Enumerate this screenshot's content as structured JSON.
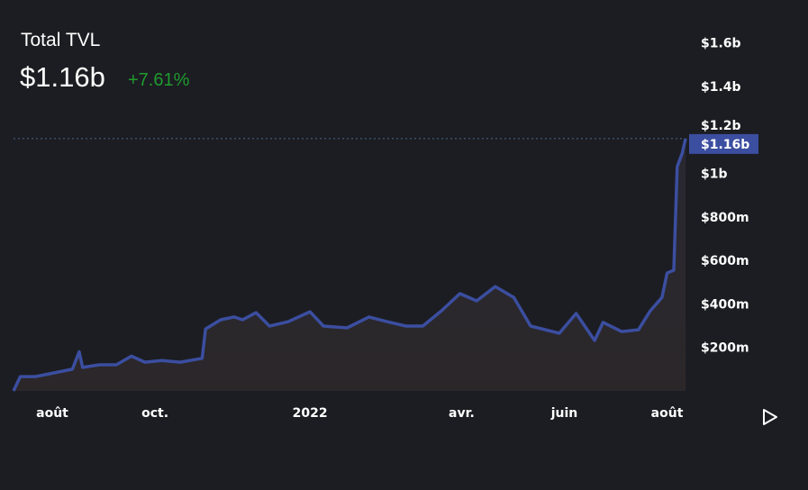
{
  "header": {
    "title": "Total TVL",
    "value": "$1.16b",
    "change": "+7.61%"
  },
  "colors": {
    "line": "#3b4ea0",
    "label_bg": "#3b4ea0",
    "change_positive": "#1f9a2e",
    "background": "#1c1d22"
  },
  "chart_data": {
    "type": "area",
    "title": "Total TVL",
    "current_label": "$1.16b",
    "ylim": [
      0,
      1700000000
    ],
    "y_ticks": [
      {
        "v": 200000000,
        "label": "$200m"
      },
      {
        "v": 400000000,
        "label": "$400m"
      },
      {
        "v": 600000000,
        "label": "$600m"
      },
      {
        "v": 800000000,
        "label": "$800m"
      },
      {
        "v": 1000000000,
        "label": "$1b"
      },
      {
        "v": 1200000000,
        "label": "$1.2b"
      },
      {
        "v": 1400000000,
        "label": "$1.4b"
      },
      {
        "v": 1600000000,
        "label": "$1.6b"
      }
    ],
    "x_ticks": [
      {
        "date": "2021-08-01",
        "label": "août"
      },
      {
        "date": "2021-10-01",
        "label": "oct."
      },
      {
        "date": "2022-01-01",
        "label": "2022"
      },
      {
        "date": "2022-04-01",
        "label": "avr."
      },
      {
        "date": "2022-06-01",
        "label": "juin"
      },
      {
        "date": "2022-08-01",
        "label": "août"
      }
    ],
    "series": [
      {
        "points": [
          [
            "2021-07-09",
            0
          ],
          [
            "2021-07-13",
            66000000
          ],
          [
            "2021-07-22",
            66000000
          ],
          [
            "2021-08-02",
            83000000
          ],
          [
            "2021-08-13",
            100000000
          ],
          [
            "2021-08-17",
            180000000
          ],
          [
            "2021-08-19",
            108000000
          ],
          [
            "2021-08-29",
            120000000
          ],
          [
            "2021-09-08",
            120000000
          ],
          [
            "2021-09-17",
            160000000
          ],
          [
            "2021-09-25",
            132000000
          ],
          [
            "2021-10-05",
            140000000
          ],
          [
            "2021-10-16",
            132000000
          ],
          [
            "2021-10-29",
            150000000
          ],
          [
            "2021-10-31",
            285000000
          ],
          [
            "2021-11-09",
            327000000
          ],
          [
            "2021-11-17",
            340000000
          ],
          [
            "2021-11-22",
            327000000
          ],
          [
            "2021-11-30",
            360000000
          ],
          [
            "2021-12-08",
            298000000
          ],
          [
            "2021-12-19",
            318000000
          ],
          [
            "2022-01-01",
            364000000
          ],
          [
            "2022-01-09",
            298000000
          ],
          [
            "2022-01-23",
            290000000
          ],
          [
            "2022-02-05",
            340000000
          ],
          [
            "2022-02-16",
            318000000
          ],
          [
            "2022-02-27",
            298000000
          ],
          [
            "2022-03-09",
            298000000
          ],
          [
            "2022-03-20",
            368000000
          ],
          [
            "2022-03-31",
            447000000
          ],
          [
            "2022-04-10",
            414000000
          ],
          [
            "2022-04-21",
            480000000
          ],
          [
            "2022-05-02",
            430000000
          ],
          [
            "2022-05-12",
            298000000
          ],
          [
            "2022-05-29",
            265000000
          ],
          [
            "2022-06-08",
            356000000
          ],
          [
            "2022-06-19",
            232000000
          ],
          [
            "2022-06-24",
            315000000
          ],
          [
            "2022-07-05",
            273000000
          ],
          [
            "2022-07-15",
            281000000
          ],
          [
            "2022-07-22",
            368000000
          ],
          [
            "2022-07-29",
            430000000
          ],
          [
            "2022-08-01",
            542000000
          ],
          [
            "2022-08-05",
            555000000
          ],
          [
            "2022-08-07",
            1031000000
          ],
          [
            "2022-08-10",
            1093000000
          ],
          [
            "2022-08-12",
            1160000000
          ]
        ]
      }
    ]
  },
  "controls": {
    "play_icon": "play-icon"
  }
}
